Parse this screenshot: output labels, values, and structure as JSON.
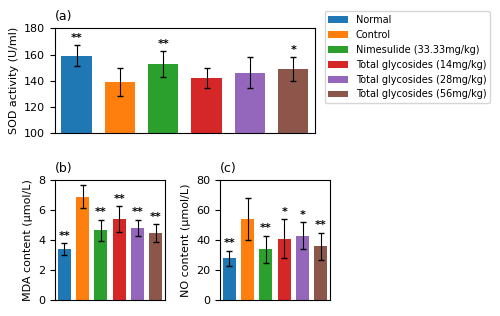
{
  "chart_data": [
    {
      "type": "bar",
      "title": "(a)",
      "categories": [
        "Normal",
        "Control",
        "Nimesulide (33.33mg/kg)",
        "Total glycosides (14mg/kg)",
        "Total glycosides (28mg/kg)",
        "Total glycosides (56mg/kg)"
      ],
      "values": [
        159,
        139,
        153,
        142,
        146,
        149
      ],
      "errors": [
        8,
        11,
        10,
        8,
        12,
        9
      ],
      "y_label": "SOD activity (U/ml)",
      "ylim": [
        100,
        180
      ],
      "yticks": [
        100,
        120,
        140,
        160,
        180
      ],
      "tick_labels": "y",
      "annotations": [
        {
          "category": "Normal",
          "text": "**"
        },
        {
          "category": "Nimesulide (33.33mg/kg)",
          "text": "**"
        },
        {
          "category": "Total glycosides (56mg/kg)",
          "text": "*"
        }
      ],
      "legend": "upper right"
    },
    {
      "type": "bar",
      "title": "(b)",
      "categories": [
        "Normal",
        "Control",
        "Nimesulide (33.33mg/kg)",
        "Total glycosides (14mg/kg)",
        "Total glycosides (28mg/kg)",
        "Total glycosides (56mg/kg)"
      ],
      "values": [
        3.4,
        6.9,
        4.65,
        5.4,
        4.8,
        4.45
      ],
      "errors": [
        0.4,
        0.75,
        0.7,
        0.85,
        0.55,
        0.6
      ],
      "y_label": "MDA content (μmol/L)",
      "ylim": [
        0,
        8
      ],
      "yticks": [
        0,
        2,
        4,
        6,
        8
      ],
      "tick_labels": "y",
      "annotations": [
        {
          "category": "Normal",
          "text": "**"
        },
        {
          "category": "Nimesulide (33.33mg/kg)",
          "text": "**"
        },
        {
          "category": "Total glycosides (14mg/kg)",
          "text": "**"
        },
        {
          "category": "Total glycosides (28mg/kg)",
          "text": "**"
        },
        {
          "category": "Total glycosides (56mg/kg)",
          "text": "**"
        }
      ]
    },
    {
      "type": "bar",
      "title": "(c)",
      "categories": [
        "Normal",
        "Control",
        "Nimesulide (33.33mg/kg)",
        "Total glycosides (14mg/kg)",
        "Total glycosides (28mg/kg)",
        "Total glycosides (56mg/kg)"
      ],
      "values": [
        28,
        54,
        34,
        41,
        43,
        36
      ],
      "errors": [
        5,
        14,
        9,
        13,
        9,
        9
      ],
      "y_label": "NO content (μmol/L)",
      "ylim": [
        0,
        80
      ],
      "yticks": [
        0,
        20,
        40,
        60,
        80
      ],
      "tick_labels": "y",
      "annotations": [
        {
          "category": "Normal",
          "text": "**"
        },
        {
          "category": "Nimesulide (33.33mg/kg)",
          "text": "**"
        },
        {
          "category": "Total glycosides (14mg/kg)",
          "text": "*"
        },
        {
          "category": "Total glycosides (28mg/kg)",
          "text": "*"
        },
        {
          "category": "Total glycosides (56mg/kg)",
          "text": "**"
        }
      ]
    }
  ]
}
